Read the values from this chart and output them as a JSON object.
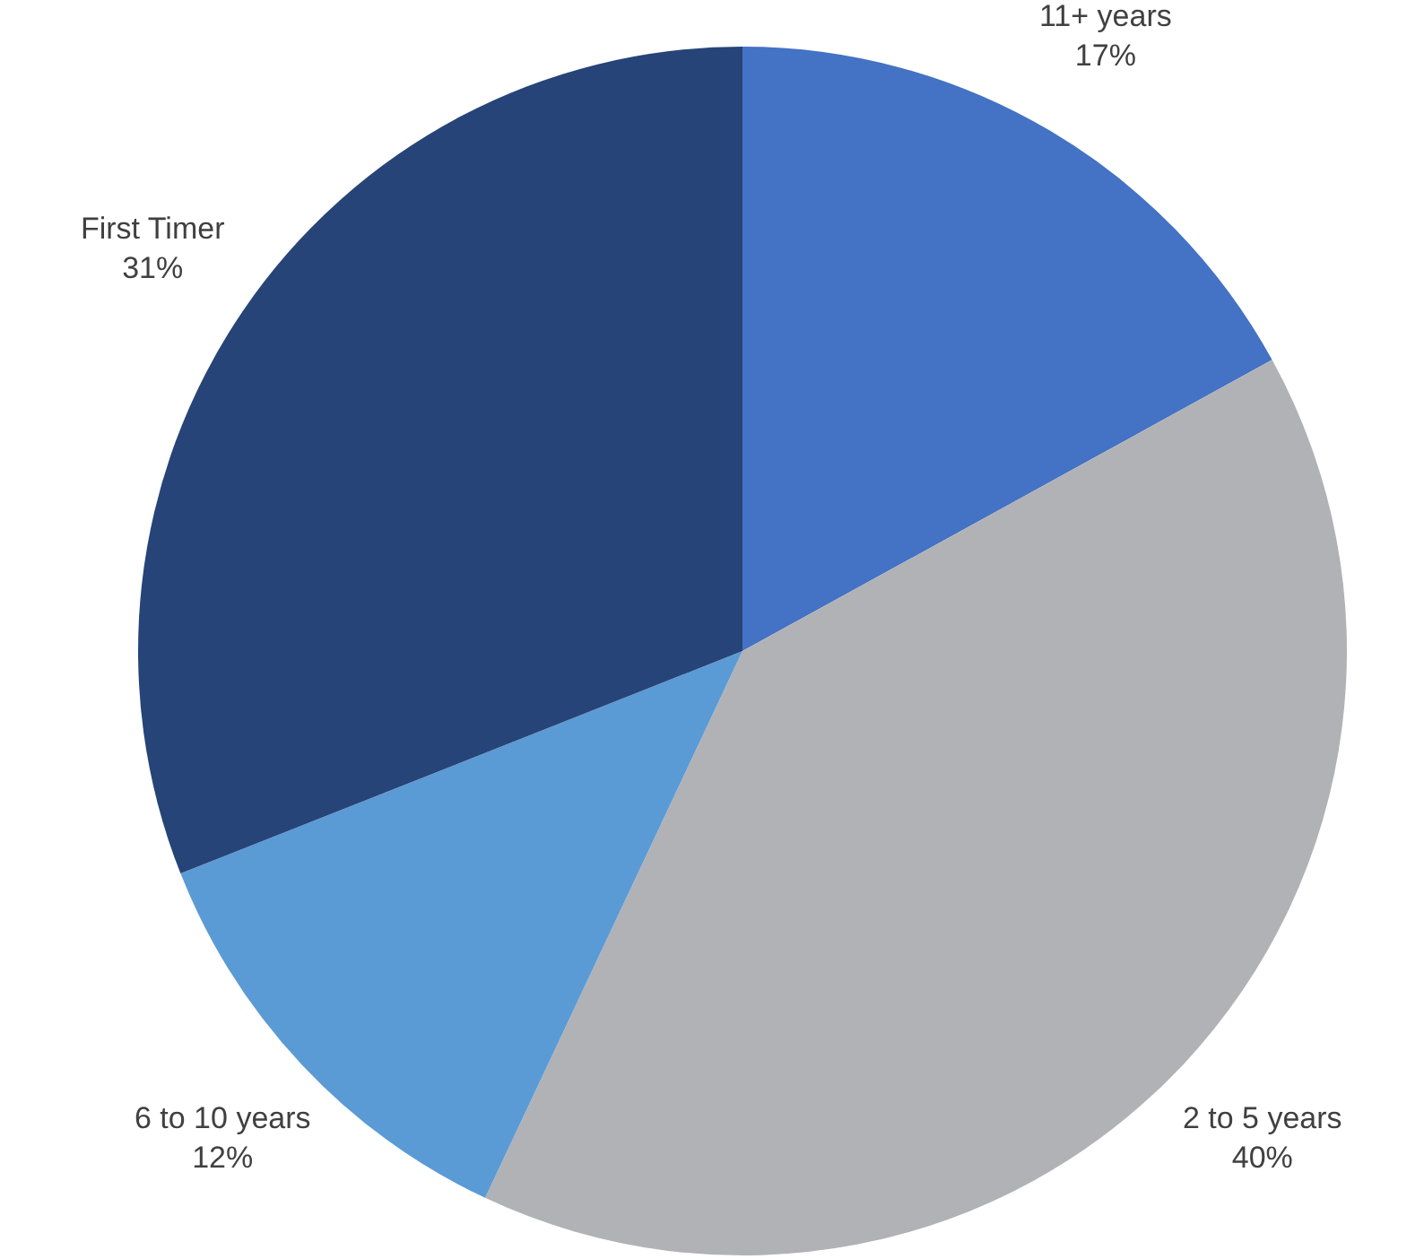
{
  "chart_data": {
    "type": "pie",
    "categories": [
      "11+ years",
      "2 to 5 years",
      "6 to 10 years",
      "First Timer"
    ],
    "values": [
      17,
      40,
      12,
      31
    ],
    "colors": [
      "#4472c4",
      "#b1b2b6",
      "#5b9bd5",
      "#264478"
    ],
    "value_labels": [
      "17%",
      "40%",
      "12%",
      "31%"
    ],
    "legend": false
  }
}
